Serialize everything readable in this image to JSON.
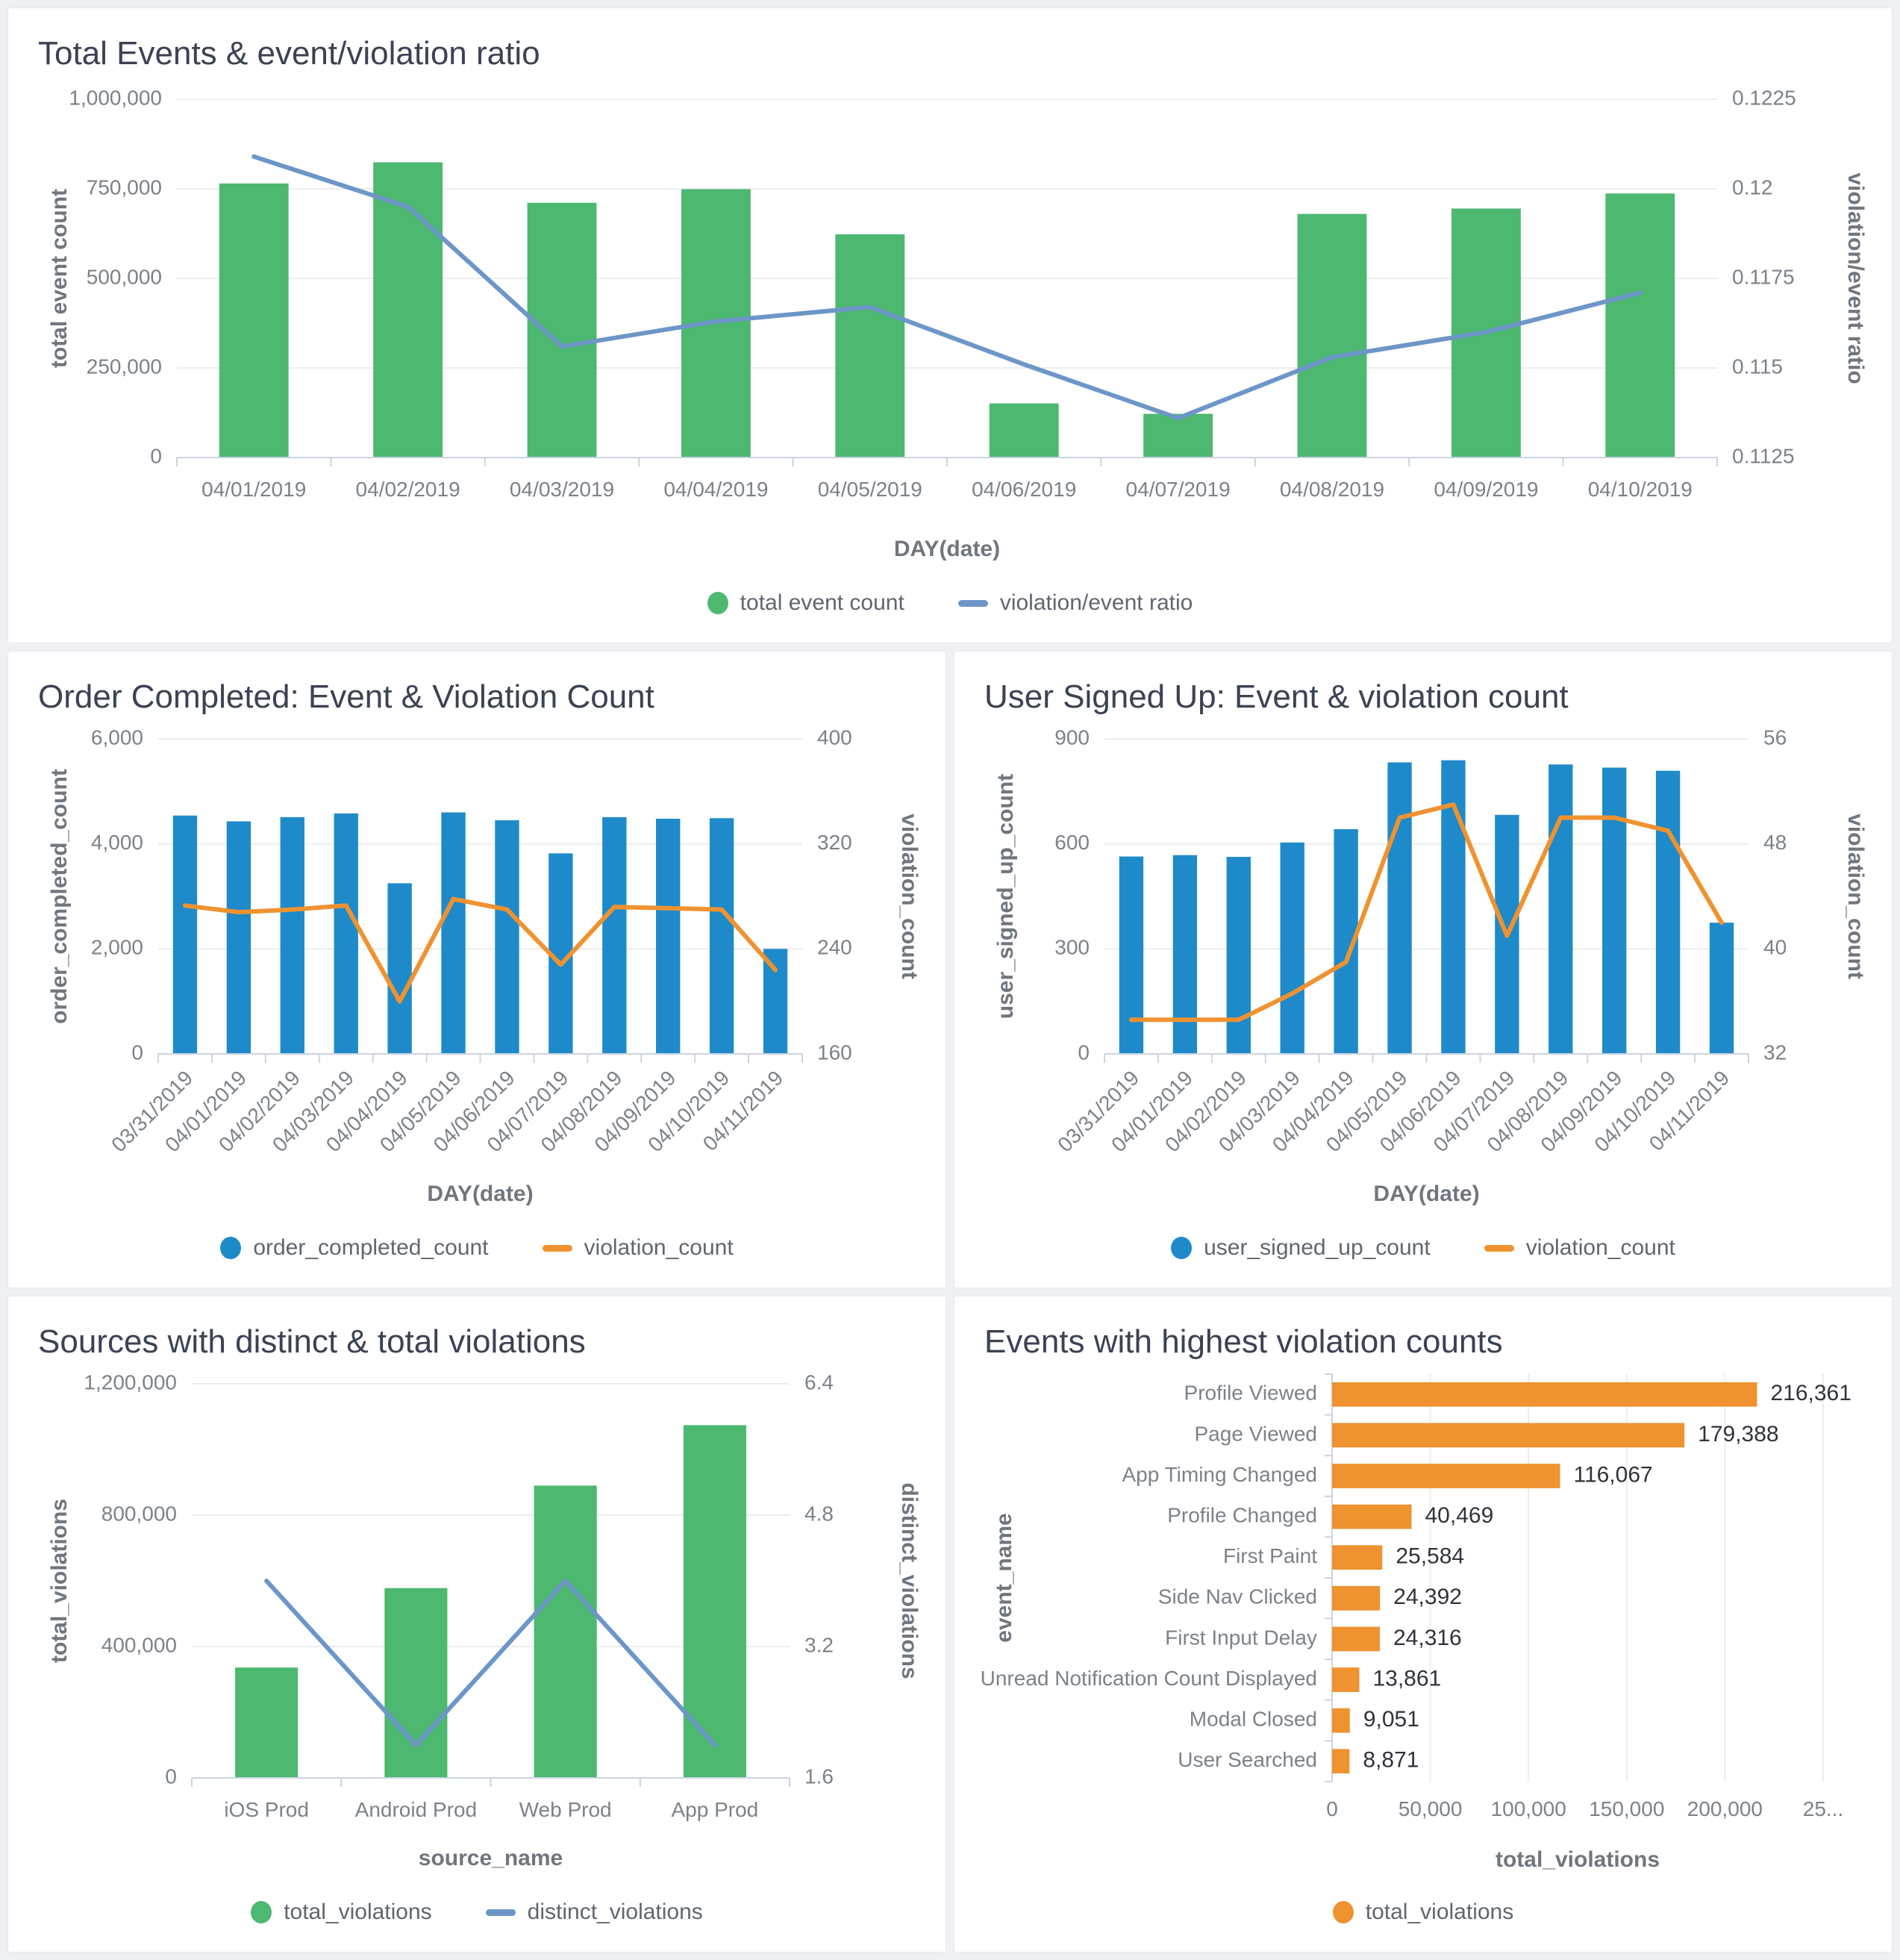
{
  "page": {
    "background": "#eef0f3"
  },
  "colors": {
    "green": "#4cb870",
    "blue": "#1f8ac9",
    "orange": "#ef9230",
    "steel": "#6d96c8",
    "grid": "#ececec",
    "axis": "#ccd3e2",
    "tick_text": "#7b8289",
    "axis_title_text": "#6f767e",
    "title_text": "#3b4254",
    "value_label_text": "#2f333b"
  },
  "chart_data": [
    {
      "id": "total-events-ratio",
      "type": "combo",
      "title": "Total Events & event/violation ratio",
      "x_title": "DAY(date)",
      "categories": [
        "04/01/2019",
        "04/02/2019",
        "04/03/2019",
        "04/04/2019",
        "04/05/2019",
        "04/06/2019",
        "04/07/2019",
        "04/08/2019",
        "04/09/2019",
        "04/10/2019"
      ],
      "bar": {
        "name": "total event count",
        "color_key": "green",
        "values": [
          765000,
          824000,
          711000,
          749000,
          623000,
          151000,
          122000,
          680000,
          695000,
          737000
        ]
      },
      "line": {
        "name": "violation/event ratio",
        "color_key": "steel",
        "values": [
          0.1209,
          0.1195,
          0.1156,
          0.1163,
          0.1167,
          0.1151,
          0.1136,
          0.1153,
          0.116,
          0.1171
        ]
      },
      "left_axis": {
        "title": "total event count",
        "min": 0,
        "max": 1000000,
        "tick_values": [
          0,
          250000,
          500000,
          750000,
          1000000
        ],
        "tick_labels": [
          "0",
          "250,000",
          "500,000",
          "750,000",
          "1,000,000"
        ]
      },
      "right_axis": {
        "title": "violation/event ratio",
        "min": 0.1125,
        "max": 0.1225,
        "tick_values": [
          0.1125,
          0.115,
          0.1175,
          0.12,
          0.1225
        ],
        "tick_labels": [
          "0.1125",
          "0.115",
          "0.1175",
          "0.12",
          "0.1225"
        ]
      },
      "legend": [
        {
          "label": "total event count",
          "shape": "circle",
          "color_key": "green"
        },
        {
          "label": "violation/event ratio",
          "shape": "line",
          "color_key": "steel"
        }
      ]
    },
    {
      "id": "order-completed",
      "type": "combo",
      "title": "Order Completed: Event & Violation Count",
      "x_title": "DAY(date)",
      "categories": [
        "03/31/2019",
        "04/01/2019",
        "04/02/2019",
        "04/03/2019",
        "04/04/2019",
        "04/05/2019",
        "04/06/2019",
        "04/07/2019",
        "04/08/2019",
        "04/09/2019",
        "04/10/2019",
        "04/11/2019"
      ],
      "bar": {
        "name": "order_completed_count",
        "color_key": "blue",
        "values": [
          4540,
          4430,
          4510,
          4580,
          3250,
          4600,
          4450,
          3820,
          4510,
          4480,
          4490,
          2000
        ]
      },
      "line": {
        "name": "violation_count",
        "color_key": "orange",
        "values": [
          273,
          268,
          270,
          273,
          200,
          278,
          270,
          228,
          272,
          271,
          270,
          224
        ]
      },
      "left_axis": {
        "title": "order_completed_count",
        "min": 0,
        "max": 6000,
        "tick_values": [
          0,
          2000,
          4000,
          6000
        ],
        "tick_labels": [
          "0",
          "2,000",
          "4,000",
          "6,000"
        ]
      },
      "right_axis": {
        "title": "violation_count",
        "min": 160,
        "max": 400,
        "tick_values": [
          160,
          240,
          320,
          400
        ],
        "tick_labels": [
          "160",
          "240",
          "320",
          "400"
        ]
      },
      "legend": [
        {
          "label": "order_completed_count",
          "shape": "circle",
          "color_key": "blue"
        },
        {
          "label": "violation_count",
          "shape": "line",
          "color_key": "orange"
        }
      ]
    },
    {
      "id": "user-signed-up",
      "type": "combo",
      "title": "User Signed Up: Event & violation count",
      "x_title": "DAY(date)",
      "categories": [
        "03/31/2019",
        "04/01/2019",
        "04/02/2019",
        "04/03/2019",
        "04/04/2019",
        "04/05/2019",
        "04/06/2019",
        "04/07/2019",
        "04/08/2019",
        "04/09/2019",
        "04/10/2019",
        "04/11/2019"
      ],
      "bar": {
        "name": "user_signed_up_count",
        "color_key": "blue",
        "values": [
          564,
          568,
          563,
          604,
          642,
          833,
          839,
          683,
          827,
          818,
          809,
          375
        ]
      },
      "line": {
        "name": "violation_count",
        "color_key": "orange",
        "values": [
          34.6,
          34.6,
          34.6,
          36.6,
          39,
          50,
          51,
          41,
          50,
          50,
          49,
          42
        ]
      },
      "left_axis": {
        "title": "user_signed_up_count",
        "min": 0,
        "max": 900,
        "tick_values": [
          0,
          300,
          600,
          900
        ],
        "tick_labels": [
          "0",
          "300",
          "600",
          "900"
        ]
      },
      "right_axis": {
        "title": "violation_count",
        "min": 32,
        "max": 56,
        "tick_values": [
          32,
          40,
          48,
          56
        ],
        "tick_labels": [
          "32",
          "40",
          "48",
          "56"
        ]
      },
      "legend": [
        {
          "label": "user_signed_up_count",
          "shape": "circle",
          "color_key": "blue"
        },
        {
          "label": "violation_count",
          "shape": "line",
          "color_key": "orange"
        }
      ]
    },
    {
      "id": "sources-violations",
      "type": "combo",
      "title": "Sources with distinct & total violations",
      "x_title": "source_name",
      "categories": [
        "iOS Prod",
        "Android Prod",
        "Web Prod",
        "App Prod"
      ],
      "bar": {
        "name": "total_violations",
        "color_key": "green",
        "values": [
          336000,
          578000,
          890000,
          1074000
        ]
      },
      "line": {
        "name": "distinct_violations",
        "color_key": "steel",
        "values": [
          4,
          2,
          4,
          2
        ]
      },
      "left_axis": {
        "title": "total_violations",
        "min": 0,
        "max": 1200000,
        "tick_values": [
          0,
          400000,
          800000,
          1200000
        ],
        "tick_labels": [
          "0",
          "400,000",
          "800,000",
          "1,200,000"
        ]
      },
      "right_axis": {
        "title": "distinct_violations",
        "min": 1.6,
        "max": 6.4,
        "tick_values": [
          1.6,
          3.2,
          4.8,
          6.4
        ],
        "tick_labels": [
          "1.6",
          "3.2",
          "4.8",
          "6.4"
        ]
      },
      "legend": [
        {
          "label": "total_violations",
          "shape": "circle",
          "color_key": "green"
        },
        {
          "label": "distinct_violations",
          "shape": "line",
          "color_key": "steel"
        }
      ]
    },
    {
      "id": "highest-violation-events",
      "type": "hbar",
      "title": "Events with highest violation counts",
      "x_title": "total_violations",
      "y_title": "event_name",
      "rows": [
        {
          "label": "Profile Viewed",
          "value": 216361,
          "value_label": "216,361"
        },
        {
          "label": "Page Viewed",
          "value": 179388,
          "value_label": "179,388"
        },
        {
          "label": "App Timing Changed",
          "value": 116067,
          "value_label": "116,067"
        },
        {
          "label": "Profile Changed",
          "value": 40469,
          "value_label": "40,469"
        },
        {
          "label": "First Paint",
          "value": 25584,
          "value_label": "25,584"
        },
        {
          "label": "Side Nav Clicked",
          "value": 24392,
          "value_label": "24,392"
        },
        {
          "label": "First Input Delay",
          "value": 24316,
          "value_label": "24,316"
        },
        {
          "label": "Unread Notification Count Displayed",
          "value": 13861,
          "value_label": "13,861"
        },
        {
          "label": "Modal Closed",
          "value": 9051,
          "value_label": "9,051"
        },
        {
          "label": "User Searched",
          "value": 8871,
          "value_label": "8,871"
        }
      ],
      "bar_color_key": "orange",
      "x_axis": {
        "min": 0,
        "max": 250000,
        "tick_values": [
          0,
          50000,
          100000,
          150000,
          200000,
          250000
        ],
        "tick_labels": [
          "0",
          "50,000",
          "100,000",
          "150,000",
          "200,000",
          "25..."
        ]
      },
      "legend": [
        {
          "label": "total_violations",
          "shape": "circle",
          "color_key": "orange"
        }
      ]
    }
  ]
}
